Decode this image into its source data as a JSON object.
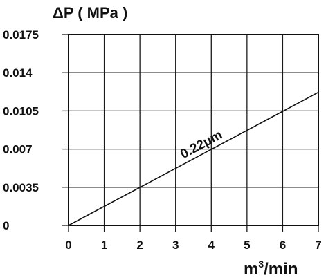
{
  "chart_data": {
    "type": "line",
    "ylabel": "ΔP ( MPa )",
    "xlabel_base": "m",
    "xlabel_sup": "3",
    "xlabel_rest": "/min",
    "x_ticks": [
      "0",
      "1",
      "2",
      "3",
      "4",
      "5",
      "6",
      "7"
    ],
    "y_ticks": [
      "0",
      "0.0035",
      "0.007",
      "0.0105",
      "0.014",
      "0.0175"
    ],
    "xlim": [
      0,
      7
    ],
    "ylim": [
      0,
      0.0175
    ],
    "grid": true,
    "series": [
      {
        "name": "0.22μm",
        "x": [
          0,
          7
        ],
        "y": [
          0,
          0.0122
        ]
      }
    ]
  }
}
